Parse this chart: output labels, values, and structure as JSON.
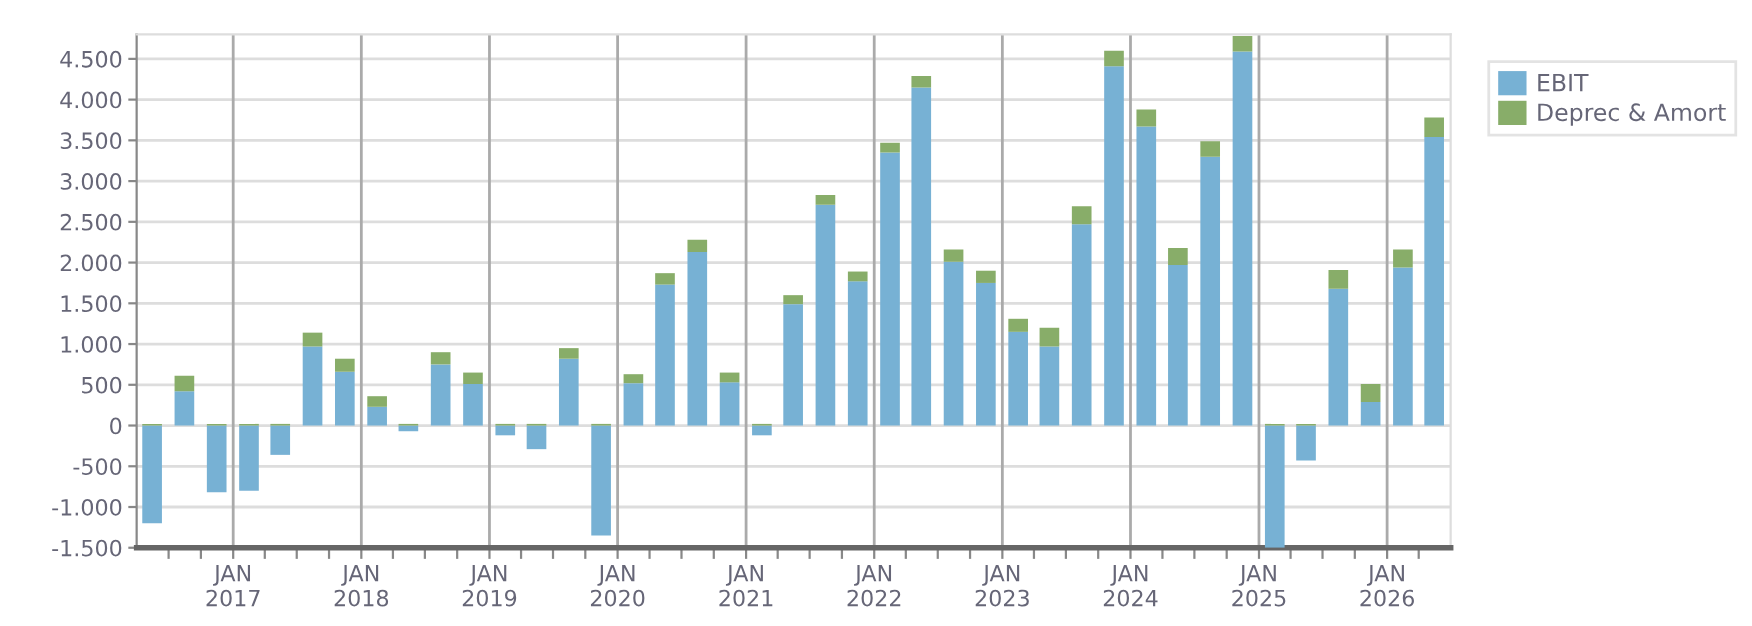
{
  "chart_data": {
    "type": "bar",
    "stacked": true,
    "x": [
      "2016-05-15",
      "2016-08-15",
      "2016-11-15",
      "2017-02-15",
      "2017-05-15",
      "2017-08-15",
      "2017-11-15",
      "2018-02-15",
      "2018-05-15",
      "2018-08-15",
      "2018-11-15",
      "2019-02-15",
      "2019-05-15",
      "2019-08-15",
      "2019-11-15",
      "2020-02-15",
      "2020-05-15",
      "2020-08-15",
      "2020-11-15",
      "2021-02-15",
      "2021-05-15",
      "2021-08-15",
      "2021-11-15",
      "2022-02-15",
      "2022-05-15",
      "2022-08-15",
      "2022-11-15",
      "2023-02-15",
      "2023-05-15",
      "2023-08-15",
      "2023-11-15",
      "2024-02-15",
      "2024-05-15",
      "2024-08-15",
      "2024-11-15",
      "2025-02-15",
      "2025-05-15",
      "2025-08-15",
      "2025-11-15",
      "2026-02-15",
      "2026-05-15"
    ],
    "series": [
      {
        "name": "EBIT",
        "color": "#77b1d4",
        "values": [
          -1200,
          420,
          -820,
          -800,
          -360,
          970,
          660,
          230,
          -70,
          750,
          510,
          -120,
          -290,
          820,
          -1350,
          520,
          1730,
          2130,
          530,
          -120,
          1490,
          2710,
          1770,
          3350,
          4150,
          2010,
          1750,
          1150,
          970,
          2470,
          4410,
          3670,
          1970,
          3300,
          4590,
          -1500,
          -430,
          1680,
          290,
          1940,
          3540
        ]
      },
      {
        "name": "Deprec & Amort",
        "color": "#88ad69",
        "values": [
          20,
          190,
          20,
          20,
          20,
          170,
          160,
          130,
          20,
          150,
          140,
          20,
          20,
          130,
          20,
          110,
          140,
          150,
          120,
          20,
          110,
          120,
          120,
          120,
          140,
          150,
          150,
          160,
          230,
          220,
          190,
          210,
          210,
          190,
          190,
          20,
          20,
          230,
          220,
          220,
          240
        ]
      }
    ],
    "xlim": [
      "2016-04-01",
      "2026-07-01"
    ],
    "xticks": [
      {
        "value": "2016-07-01",
        "label": null
      },
      {
        "value": "2016-10-01",
        "label": null
      },
      {
        "value": "2017-01-01",
        "label": "JAN\n2017"
      },
      {
        "value": "2017-04-01",
        "label": null
      },
      {
        "value": "2017-07-01",
        "label": null
      },
      {
        "value": "2017-10-01",
        "label": null
      },
      {
        "value": "2018-01-01",
        "label": "JAN\n2018"
      },
      {
        "value": "2018-04-01",
        "label": null
      },
      {
        "value": "2018-07-01",
        "label": null
      },
      {
        "value": "2018-10-01",
        "label": null
      },
      {
        "value": "2019-01-01",
        "label": "JAN\n2019"
      },
      {
        "value": "2019-04-01",
        "label": null
      },
      {
        "value": "2019-07-01",
        "label": null
      },
      {
        "value": "2019-10-01",
        "label": null
      },
      {
        "value": "2020-01-01",
        "label": "JAN\n2020"
      },
      {
        "value": "2020-04-01",
        "label": null
      },
      {
        "value": "2020-07-01",
        "label": null
      },
      {
        "value": "2020-10-01",
        "label": null
      },
      {
        "value": "2021-01-01",
        "label": "JAN\n2021"
      },
      {
        "value": "2021-04-01",
        "label": null
      },
      {
        "value": "2021-07-01",
        "label": null
      },
      {
        "value": "2021-10-01",
        "label": null
      },
      {
        "value": "2022-01-01",
        "label": "JAN\n2022"
      },
      {
        "value": "2022-04-01",
        "label": null
      },
      {
        "value": "2022-07-01",
        "label": null
      },
      {
        "value": "2022-10-01",
        "label": null
      },
      {
        "value": "2023-01-01",
        "label": "JAN\n2023"
      },
      {
        "value": "2023-04-01",
        "label": null
      },
      {
        "value": "2023-07-01",
        "label": null
      },
      {
        "value": "2023-10-01",
        "label": null
      },
      {
        "value": "2024-01-01",
        "label": "JAN\n2024"
      },
      {
        "value": "2024-04-01",
        "label": null
      },
      {
        "value": "2024-07-01",
        "label": null
      },
      {
        "value": "2024-10-01",
        "label": null
      },
      {
        "value": "2025-01-01",
        "label": "JAN\n2025"
      },
      {
        "value": "2025-04-01",
        "label": null
      },
      {
        "value": "2025-07-01",
        "label": null
      },
      {
        "value": "2025-10-01",
        "label": null
      },
      {
        "value": "2026-01-01",
        "label": "JAN\n2026"
      },
      {
        "value": "2026-04-01",
        "label": null
      }
    ],
    "ylim": [
      -1500,
      4800
    ],
    "yticks": [
      {
        "value": -1500,
        "label": "-1.500"
      },
      {
        "value": -1000,
        "label": "-1.000"
      },
      -500,
      0,
      500,
      {
        "value": 1000,
        "label": "1.000"
      },
      {
        "value": 1500,
        "label": "1.500"
      },
      {
        "value": 2000,
        "label": "2.000"
      },
      {
        "value": 2500,
        "label": "2.500"
      },
      {
        "value": 3000,
        "label": "3.000"
      },
      {
        "value": 3500,
        "label": "3.500"
      },
      {
        "value": 4000,
        "label": "4.000"
      },
      {
        "value": 4500,
        "label": "4.500"
      }
    ],
    "grid": true,
    "legend": "right"
  }
}
